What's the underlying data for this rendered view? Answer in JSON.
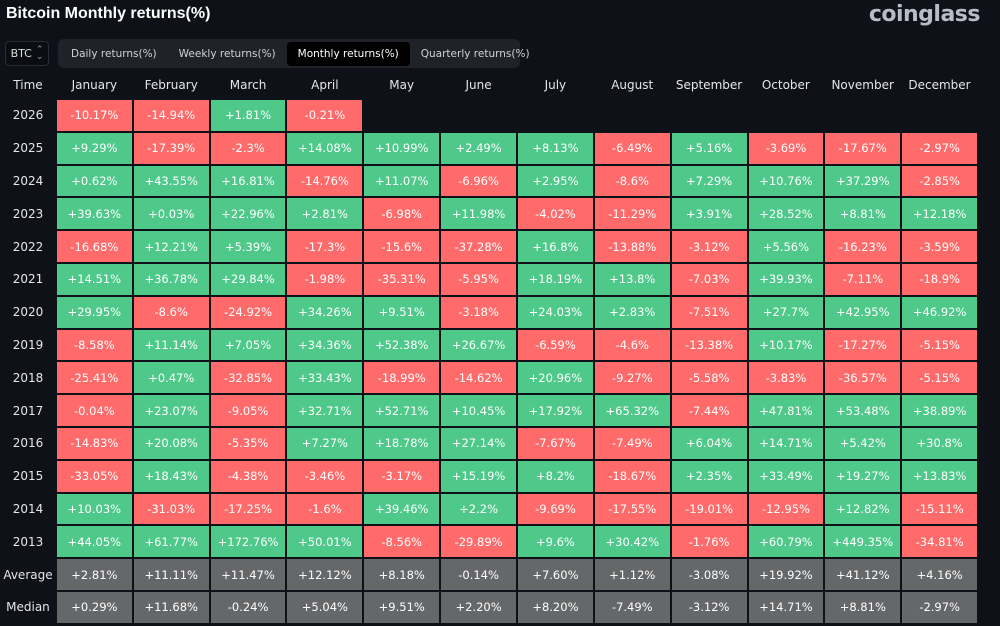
{
  "title": "Bitcoin Monthly returns(%)",
  "logo": "coinglass",
  "asset_select": {
    "value": "BTC",
    "icon": "up-down-chevron-icon"
  },
  "tabs": [
    {
      "label": "Daily returns(%)",
      "active": false
    },
    {
      "label": "Weekly returns(%)",
      "active": false
    },
    {
      "label": "Monthly returns(%)",
      "active": true
    },
    {
      "label": "Quarterly returns(%)",
      "active": false
    }
  ],
  "colors": {
    "positive": "#4fc98a",
    "negative": "#ff6b6b",
    "stat": "#666769",
    "background": "#0f1118"
  },
  "table": {
    "time_header": "Time",
    "months": [
      "January",
      "February",
      "March",
      "April",
      "May",
      "June",
      "July",
      "August",
      "September",
      "October",
      "November",
      "December"
    ],
    "rows": [
      {
        "year": "2026",
        "values": [
          "-10.17%",
          "-14.94%",
          "+1.81%",
          "-0.21%",
          "",
          "",
          "",
          "",
          "",
          "",
          "",
          ""
        ]
      },
      {
        "year": "2025",
        "values": [
          "+9.29%",
          "-17.39%",
          "-2.3%",
          "+14.08%",
          "+10.99%",
          "+2.49%",
          "+8.13%",
          "-6.49%",
          "+5.16%",
          "-3.69%",
          "-17.67%",
          "-2.97%"
        ]
      },
      {
        "year": "2024",
        "values": [
          "+0.62%",
          "+43.55%",
          "+16.81%",
          "-14.76%",
          "+11.07%",
          "-6.96%",
          "+2.95%",
          "-8.6%",
          "+7.29%",
          "+10.76%",
          "+37.29%",
          "-2.85%"
        ]
      },
      {
        "year": "2023",
        "values": [
          "+39.63%",
          "+0.03%",
          "+22.96%",
          "+2.81%",
          "-6.98%",
          "+11.98%",
          "-4.02%",
          "-11.29%",
          "+3.91%",
          "+28.52%",
          "+8.81%",
          "+12.18%"
        ]
      },
      {
        "year": "2022",
        "values": [
          "-16.68%",
          "+12.21%",
          "+5.39%",
          "-17.3%",
          "-15.6%",
          "-37.28%",
          "+16.8%",
          "-13.88%",
          "-3.12%",
          "+5.56%",
          "-16.23%",
          "-3.59%"
        ]
      },
      {
        "year": "2021",
        "values": [
          "+14.51%",
          "+36.78%",
          "+29.84%",
          "-1.98%",
          "-35.31%",
          "-5.95%",
          "+18.19%",
          "+13.8%",
          "-7.03%",
          "+39.93%",
          "-7.11%",
          "-18.9%"
        ]
      },
      {
        "year": "2020",
        "values": [
          "+29.95%",
          "-8.6%",
          "-24.92%",
          "+34.26%",
          "+9.51%",
          "-3.18%",
          "+24.03%",
          "+2.83%",
          "-7.51%",
          "+27.7%",
          "+42.95%",
          "+46.92%"
        ]
      },
      {
        "year": "2019",
        "values": [
          "-8.58%",
          "+11.14%",
          "+7.05%",
          "+34.36%",
          "+52.38%",
          "+26.67%",
          "-6.59%",
          "-4.6%",
          "-13.38%",
          "+10.17%",
          "-17.27%",
          "-5.15%"
        ]
      },
      {
        "year": "2018",
        "values": [
          "-25.41%",
          "+0.47%",
          "-32.85%",
          "+33.43%",
          "-18.99%",
          "-14.62%",
          "+20.96%",
          "-9.27%",
          "-5.58%",
          "-3.83%",
          "-36.57%",
          "-5.15%"
        ]
      },
      {
        "year": "2017",
        "values": [
          "-0.04%",
          "+23.07%",
          "-9.05%",
          "+32.71%",
          "+52.71%",
          "+10.45%",
          "+17.92%",
          "+65.32%",
          "-7.44%",
          "+47.81%",
          "+53.48%",
          "+38.89%"
        ]
      },
      {
        "year": "2016",
        "values": [
          "-14.83%",
          "+20.08%",
          "-5.35%",
          "+7.27%",
          "+18.78%",
          "+27.14%",
          "-7.67%",
          "-7.49%",
          "+6.04%",
          "+14.71%",
          "+5.42%",
          "+30.8%"
        ]
      },
      {
        "year": "2015",
        "values": [
          "-33.05%",
          "+18.43%",
          "-4.38%",
          "-3.46%",
          "-3.17%",
          "+15.19%",
          "+8.2%",
          "-18.67%",
          "+2.35%",
          "+33.49%",
          "+19.27%",
          "+13.83%"
        ]
      },
      {
        "year": "2014",
        "values": [
          "+10.03%",
          "-31.03%",
          "-17.25%",
          "-1.6%",
          "+39.46%",
          "+2.2%",
          "-9.69%",
          "-17.55%",
          "-19.01%",
          "-12.95%",
          "+12.82%",
          "-15.11%"
        ]
      },
      {
        "year": "2013",
        "values": [
          "+44.05%",
          "+61.77%",
          "+172.76%",
          "+50.01%",
          "-8.56%",
          "-29.89%",
          "+9.6%",
          "+30.42%",
          "-1.76%",
          "+60.79%",
          "+449.35%",
          "-34.81%"
        ]
      }
    ],
    "stats": [
      {
        "year": "Average",
        "values": [
          "+2.81%",
          "+11.11%",
          "+11.47%",
          "+12.12%",
          "+8.18%",
          "-0.14%",
          "+7.60%",
          "+1.12%",
          "-3.08%",
          "+19.92%",
          "+41.12%",
          "+4.16%"
        ]
      },
      {
        "year": "Median",
        "values": [
          "+0.29%",
          "+11.68%",
          "-0.24%",
          "+5.04%",
          "+9.51%",
          "+2.20%",
          "+8.20%",
          "-7.49%",
          "-3.12%",
          "+14.71%",
          "+8.81%",
          "-2.97%"
        ]
      }
    ]
  }
}
